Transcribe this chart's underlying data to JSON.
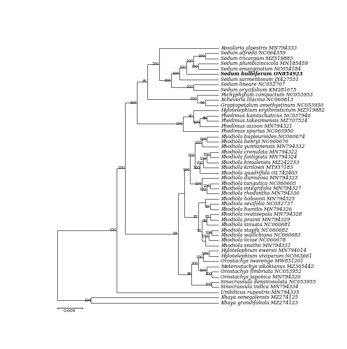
{
  "figure_size": [
    4.97,
    5.0
  ],
  "dpi": 100,
  "background": "white",
  "scale_bar_label": "0.009",
  "taxa": [
    "Rosularia alpestris MN794333",
    "Sedum alfredii NC064359",
    "Sedum tricarpum MZ519883",
    "Sedum plumbizincicola MN185459",
    "Sedum emarginatum NC054184",
    "Sedum bulbiferum ON854923",
    "Sedum sarmentosum JX427551",
    "Sedum lineare NC052707",
    "Sedum oryzifolium KM281675",
    "Pachyphytum compactum NC053953",
    "Echeveria lilacina NC060813",
    "Graptopetalum amethystinum NC053950",
    "Hylotelephium erythrostictum MZ519882",
    "Phedimus kamtschaticus NC037946",
    "Phedimus takesimensis MZ707524",
    "Phedimus aizoon MN794321",
    "Phedimus spurius NC063950",
    "Rhodiola bupleuroides NC060674",
    "Rhodiola henryi NC060676",
    "Rhodiola yunnanensis MN794332",
    "Rhodiola crenulata MN794322",
    "Rhodiola fastigiata MN794324",
    "Rhodiola himalensis MZ242253",
    "Rhodiola kirilowii MT937183",
    "Rhodiola quadrifida OL742463",
    "Rhodiola dumulosa MN794323",
    "Rhodiola tangutica NC060605",
    "Rhodiola integrifolia MN794327",
    "Rhodiola rhodantha MN794330",
    "Rhodiola hobsonii MN794325",
    "Rhodiola sexifolia NC052737",
    "Rhodiola humilis MN794326",
    "Rhodiola ovatisepala MN794328",
    "Rhodiola prainii MN794329",
    "Rhodiola sinuata NC060681",
    "Rhodiola stapfii NC060682",
    "Rhodiola wallichiana NC060683",
    "Rhodiola liciae NC060678",
    "Rhodiola smithii MN794331",
    "Hylotelephium ewersii MN794014",
    "Hylotelephium viviparum NC063661",
    "Orostachys iwarenge MW851201",
    "Meterostachys sikokianus MZ365442",
    "Orostachys fimbriata NC053952",
    "Orostachys japonica MN794320",
    "Sinocrassula densirosulata NC053955",
    "Sinocrassula indica MN794334",
    "Umbilicus rupestris MN794335",
    "Khaya senegalensis MZ274125",
    "Khaya grandifoliola MZ274123"
  ],
  "bold_taxa": [
    "Sedum bulbiferum ON854923"
  ],
  "line_color": "#4a4a4a",
  "text_color": "#000000",
  "font_size": 5.0,
  "bootstrap_font_size": 4.0,
  "leaf_x": 10.0,
  "xlim": [
    -0.3,
    15.5
  ],
  "ylim": [
    -1.5,
    50.2
  ]
}
